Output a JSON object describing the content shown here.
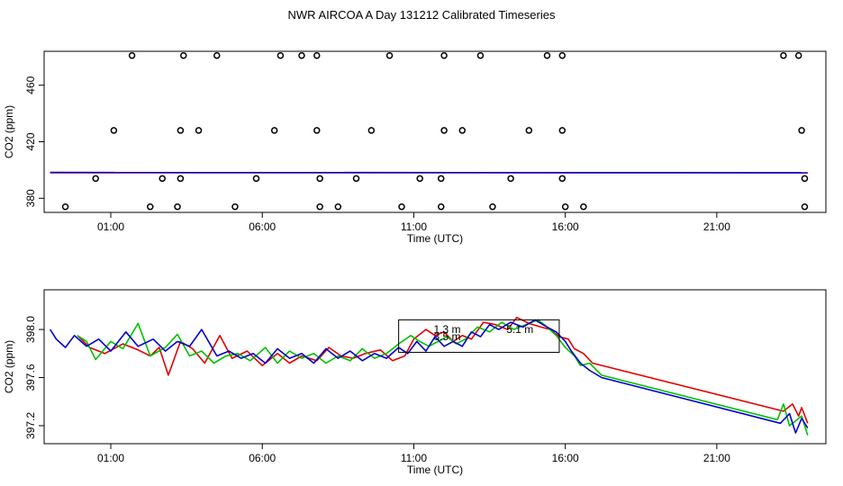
{
  "title": "NWR AIRCOA A  Day 131212  Calibrated Timeseries",
  "colors": {
    "red": "#e00000",
    "green": "#00c000",
    "blue": "#0000cc",
    "black": "#000000"
  },
  "chart_data": [
    {
      "type": "scatter",
      "xlabel": "Time (UTC)",
      "ylabel": "CO2 (ppm)",
      "xlim": [
        -1.2,
        24.6
      ],
      "ylim": [
        370,
        484
      ],
      "xticks": [
        1,
        6,
        11,
        16,
        21
      ],
      "xtick_labels": [
        "01:00",
        "06:00",
        "11:00",
        "16:00",
        "21:00"
      ],
      "yticks": [
        380,
        420,
        460
      ],
      "ytick_labels": [
        "380",
        "420",
        "460"
      ],
      "points": [
        [
          -0.5,
          374
        ],
        [
          0.5,
          394
        ],
        [
          1.1,
          428
        ],
        [
          1.7,
          481
        ],
        [
          2.3,
          374
        ],
        [
          2.7,
          394
        ],
        [
          3.2,
          374
        ],
        [
          3.3,
          394
        ],
        [
          3.3,
          428
        ],
        [
          3.4,
          481
        ],
        [
          3.9,
          428
        ],
        [
          4.5,
          481
        ],
        [
          5.1,
          374
        ],
        [
          5.8,
          394
        ],
        [
          6.4,
          428
        ],
        [
          6.6,
          481
        ],
        [
          7.3,
          481
        ],
        [
          7.8,
          428
        ],
        [
          7.8,
          481
        ],
        [
          7.9,
          374
        ],
        [
          7.9,
          394
        ],
        [
          8.5,
          374
        ],
        [
          9.1,
          394
        ],
        [
          9.6,
          428
        ],
        [
          10.2,
          481
        ],
        [
          10.6,
          374
        ],
        [
          11.2,
          394
        ],
        [
          11.9,
          374
        ],
        [
          11.9,
          394
        ],
        [
          12.0,
          428
        ],
        [
          12.0,
          481
        ],
        [
          12.6,
          428
        ],
        [
          13.2,
          481
        ],
        [
          13.6,
          374
        ],
        [
          14.2,
          394
        ],
        [
          14.8,
          428
        ],
        [
          15.4,
          481
        ],
        [
          15.9,
          481
        ],
        [
          15.9,
          428
        ],
        [
          15.9,
          394
        ],
        [
          16.0,
          374
        ],
        [
          16.6,
          374
        ],
        [
          23.2,
          481
        ],
        [
          23.7,
          481
        ],
        [
          23.8,
          428
        ],
        [
          23.9,
          394
        ],
        [
          23.9,
          374
        ]
      ],
      "series": [
        {
          "color": "red",
          "x": [
            -1,
            24
          ],
          "y": [
            398,
            398
          ]
        },
        {
          "color": "blue",
          "x": [
            -1,
            24
          ],
          "y": [
            398.3,
            398.1
          ]
        }
      ]
    },
    {
      "type": "line",
      "xlabel": "Time (UTC)",
      "ylabel": "CO2 (ppm)",
      "xlim": [
        -1.2,
        24.6
      ],
      "ylim": [
        397.05,
        398.33
      ],
      "xticks": [
        1,
        6,
        11,
        16,
        21
      ],
      "xtick_labels": [
        "01:00",
        "06:00",
        "11:00",
        "16:00",
        "21:00"
      ],
      "yticks": [
        397.2,
        397.6,
        398.0
      ],
      "ytick_labels": [
        "397.2",
        "397.6",
        "398.0"
      ],
      "box": {
        "x0": 10.5,
        "x1": 15.8,
        "y0": 397.81,
        "y1": 398.08
      },
      "box_labels": [
        {
          "text": "1.3 m",
          "x": 12.1,
          "y": 398.0
        },
        {
          "text": "3.5 m",
          "x": 12.1,
          "y": 397.94
        },
        {
          "text": "5.1 m",
          "x": 14.5,
          "y": 398.0
        }
      ],
      "series": [
        {
          "color": "red",
          "x": [
            -0.1,
            0.3,
            0.8,
            1.4,
            1.9,
            2.3,
            2.6,
            2.9,
            3.3,
            3.7,
            4.1,
            4.6,
            5.0,
            5.5,
            6.0,
            6.5,
            6.9,
            7.3,
            7.8,
            8.2,
            8.6,
            9.0,
            9.4,
            9.9,
            10.3,
            10.7,
            11.0,
            11.4,
            11.7,
            12.0,
            12.3,
            12.6,
            12.9,
            13.3,
            13.7,
            14.1,
            14.4,
            14.8,
            15.2,
            15.5,
            15.8,
            16.1,
            16.3,
            16.6,
            16.9,
            23.2,
            23.5,
            23.7,
            23.8,
            24.0
          ],
          "y": [
            397.95,
            397.85,
            397.8,
            397.88,
            397.83,
            397.78,
            397.85,
            397.62,
            397.9,
            397.84,
            397.72,
            397.95,
            397.76,
            397.82,
            397.7,
            397.8,
            397.72,
            397.78,
            397.74,
            397.85,
            397.78,
            397.76,
            397.8,
            397.83,
            397.74,
            397.78,
            397.92,
            398.0,
            397.95,
            397.98,
            397.9,
            397.95,
            397.92,
            398.06,
            398.04,
            398.0,
            398.1,
            398.05,
            398.02,
            398.0,
            397.94,
            397.92,
            397.84,
            397.8,
            397.72,
            397.32,
            397.38,
            397.28,
            397.35,
            397.22
          ]
        },
        {
          "color": "green",
          "x": [
            -0.1,
            0.2,
            0.5,
            1.0,
            1.4,
            1.9,
            2.3,
            2.8,
            3.2,
            3.6,
            4.0,
            4.4,
            4.8,
            5.2,
            5.6,
            6.1,
            6.5,
            6.9,
            7.3,
            7.7,
            8.1,
            8.5,
            8.9,
            9.3,
            9.7,
            10.1,
            10.5,
            10.9,
            11.2,
            11.5,
            11.8,
            12.1,
            12.4,
            12.7,
            13.1,
            13.5,
            13.9,
            14.3,
            14.7,
            15.1,
            15.4,
            15.7,
            16.0,
            16.3,
            16.5,
            16.8,
            17.2,
            23.0,
            23.2,
            23.4,
            23.6,
            23.8,
            24.0
          ],
          "y": [
            397.95,
            397.9,
            397.75,
            397.9,
            397.84,
            398.05,
            397.78,
            397.85,
            397.96,
            397.78,
            397.82,
            397.72,
            397.78,
            397.8,
            397.74,
            397.85,
            397.72,
            397.82,
            397.76,
            397.8,
            397.72,
            397.78,
            397.74,
            397.84,
            397.76,
            397.8,
            397.88,
            397.95,
            397.9,
            397.86,
            397.9,
            397.94,
            397.88,
            397.92,
            398.02,
            397.98,
            398.06,
            398.0,
            398.04,
            398.08,
            398.02,
            397.95,
            397.85,
            397.78,
            397.7,
            397.72,
            397.62,
            397.25,
            397.38,
            397.2,
            397.24,
            397.28,
            397.12
          ]
        },
        {
          "color": "blue",
          "x": [
            -1.0,
            -0.8,
            -0.5,
            -0.2,
            0.2,
            0.6,
            1.0,
            1.5,
            1.9,
            2.4,
            2.8,
            3.2,
            3.6,
            4.0,
            4.5,
            4.9,
            5.3,
            5.7,
            6.1,
            6.5,
            6.9,
            7.3,
            7.7,
            8.1,
            8.5,
            8.9,
            9.3,
            9.7,
            10.1,
            10.5,
            10.8,
            11.1,
            11.4,
            11.7,
            12.0,
            12.3,
            12.6,
            12.9,
            13.2,
            13.5,
            13.8,
            14.2,
            14.6,
            15.0,
            15.4,
            15.7,
            16.0,
            16.2,
            16.5,
            16.8,
            17.2,
            23.1,
            23.4,
            23.6,
            23.8,
            24.0
          ],
          "y": [
            398.0,
            397.92,
            397.85,
            397.95,
            397.86,
            397.92,
            397.82,
            397.98,
            397.86,
            397.92,
            397.82,
            397.9,
            397.86,
            398.0,
            397.78,
            397.82,
            397.76,
            397.8,
            397.72,
            397.84,
            397.76,
            397.8,
            397.72,
            397.84,
            397.76,
            397.82,
            397.74,
            397.8,
            397.76,
            397.85,
            397.8,
            397.9,
            397.82,
            397.94,
            397.86,
            397.9,
            397.86,
            397.98,
            397.94,
            398.04,
            398.0,
            398.06,
            398.02,
            398.08,
            398.02,
            397.98,
            397.9,
            397.82,
            397.72,
            397.66,
            397.6,
            397.22,
            397.3,
            397.14,
            397.26,
            397.18
          ]
        }
      ]
    }
  ]
}
